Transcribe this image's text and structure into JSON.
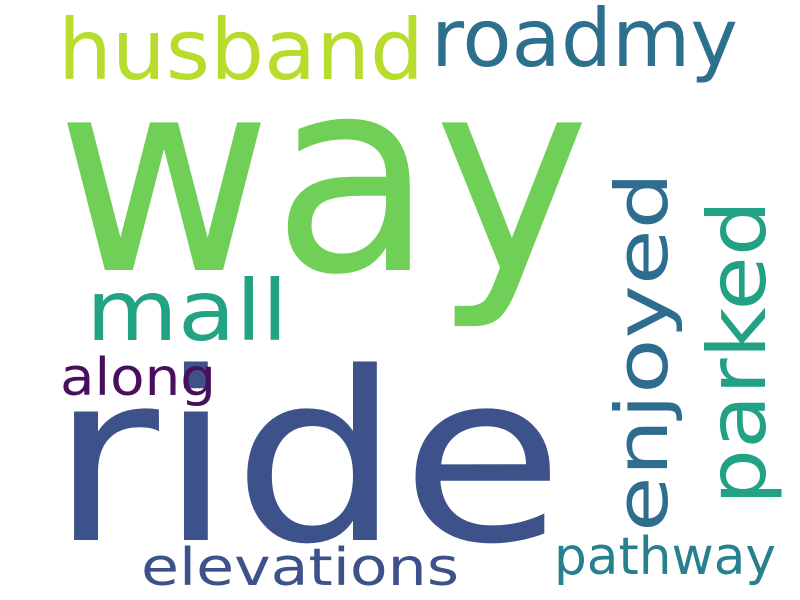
{
  "words": [
    {
      "id": "way",
      "text": "way",
      "color": "#6fcf57"
    },
    {
      "id": "ride",
      "text": "ride",
      "color": "#3d528a"
    },
    {
      "id": "husband",
      "text": "husband",
      "color": "#b8dc2c"
    },
    {
      "id": "roadmy",
      "text": "roadmy",
      "color": "#2d708e"
    },
    {
      "id": "enjoyed",
      "text": "enjoyed",
      "color": "#2f6d8e"
    },
    {
      "id": "parked",
      "text": "parked",
      "color": "#23a184"
    },
    {
      "id": "mall",
      "text": "mall",
      "color": "#22a383"
    },
    {
      "id": "along",
      "text": "along",
      "color": "#470f5c"
    },
    {
      "id": "elevations",
      "text": "elevations",
      "color": "#3d528a"
    },
    {
      "id": "pathway",
      "text": "pathway",
      "color": "#27808e"
    }
  ]
}
